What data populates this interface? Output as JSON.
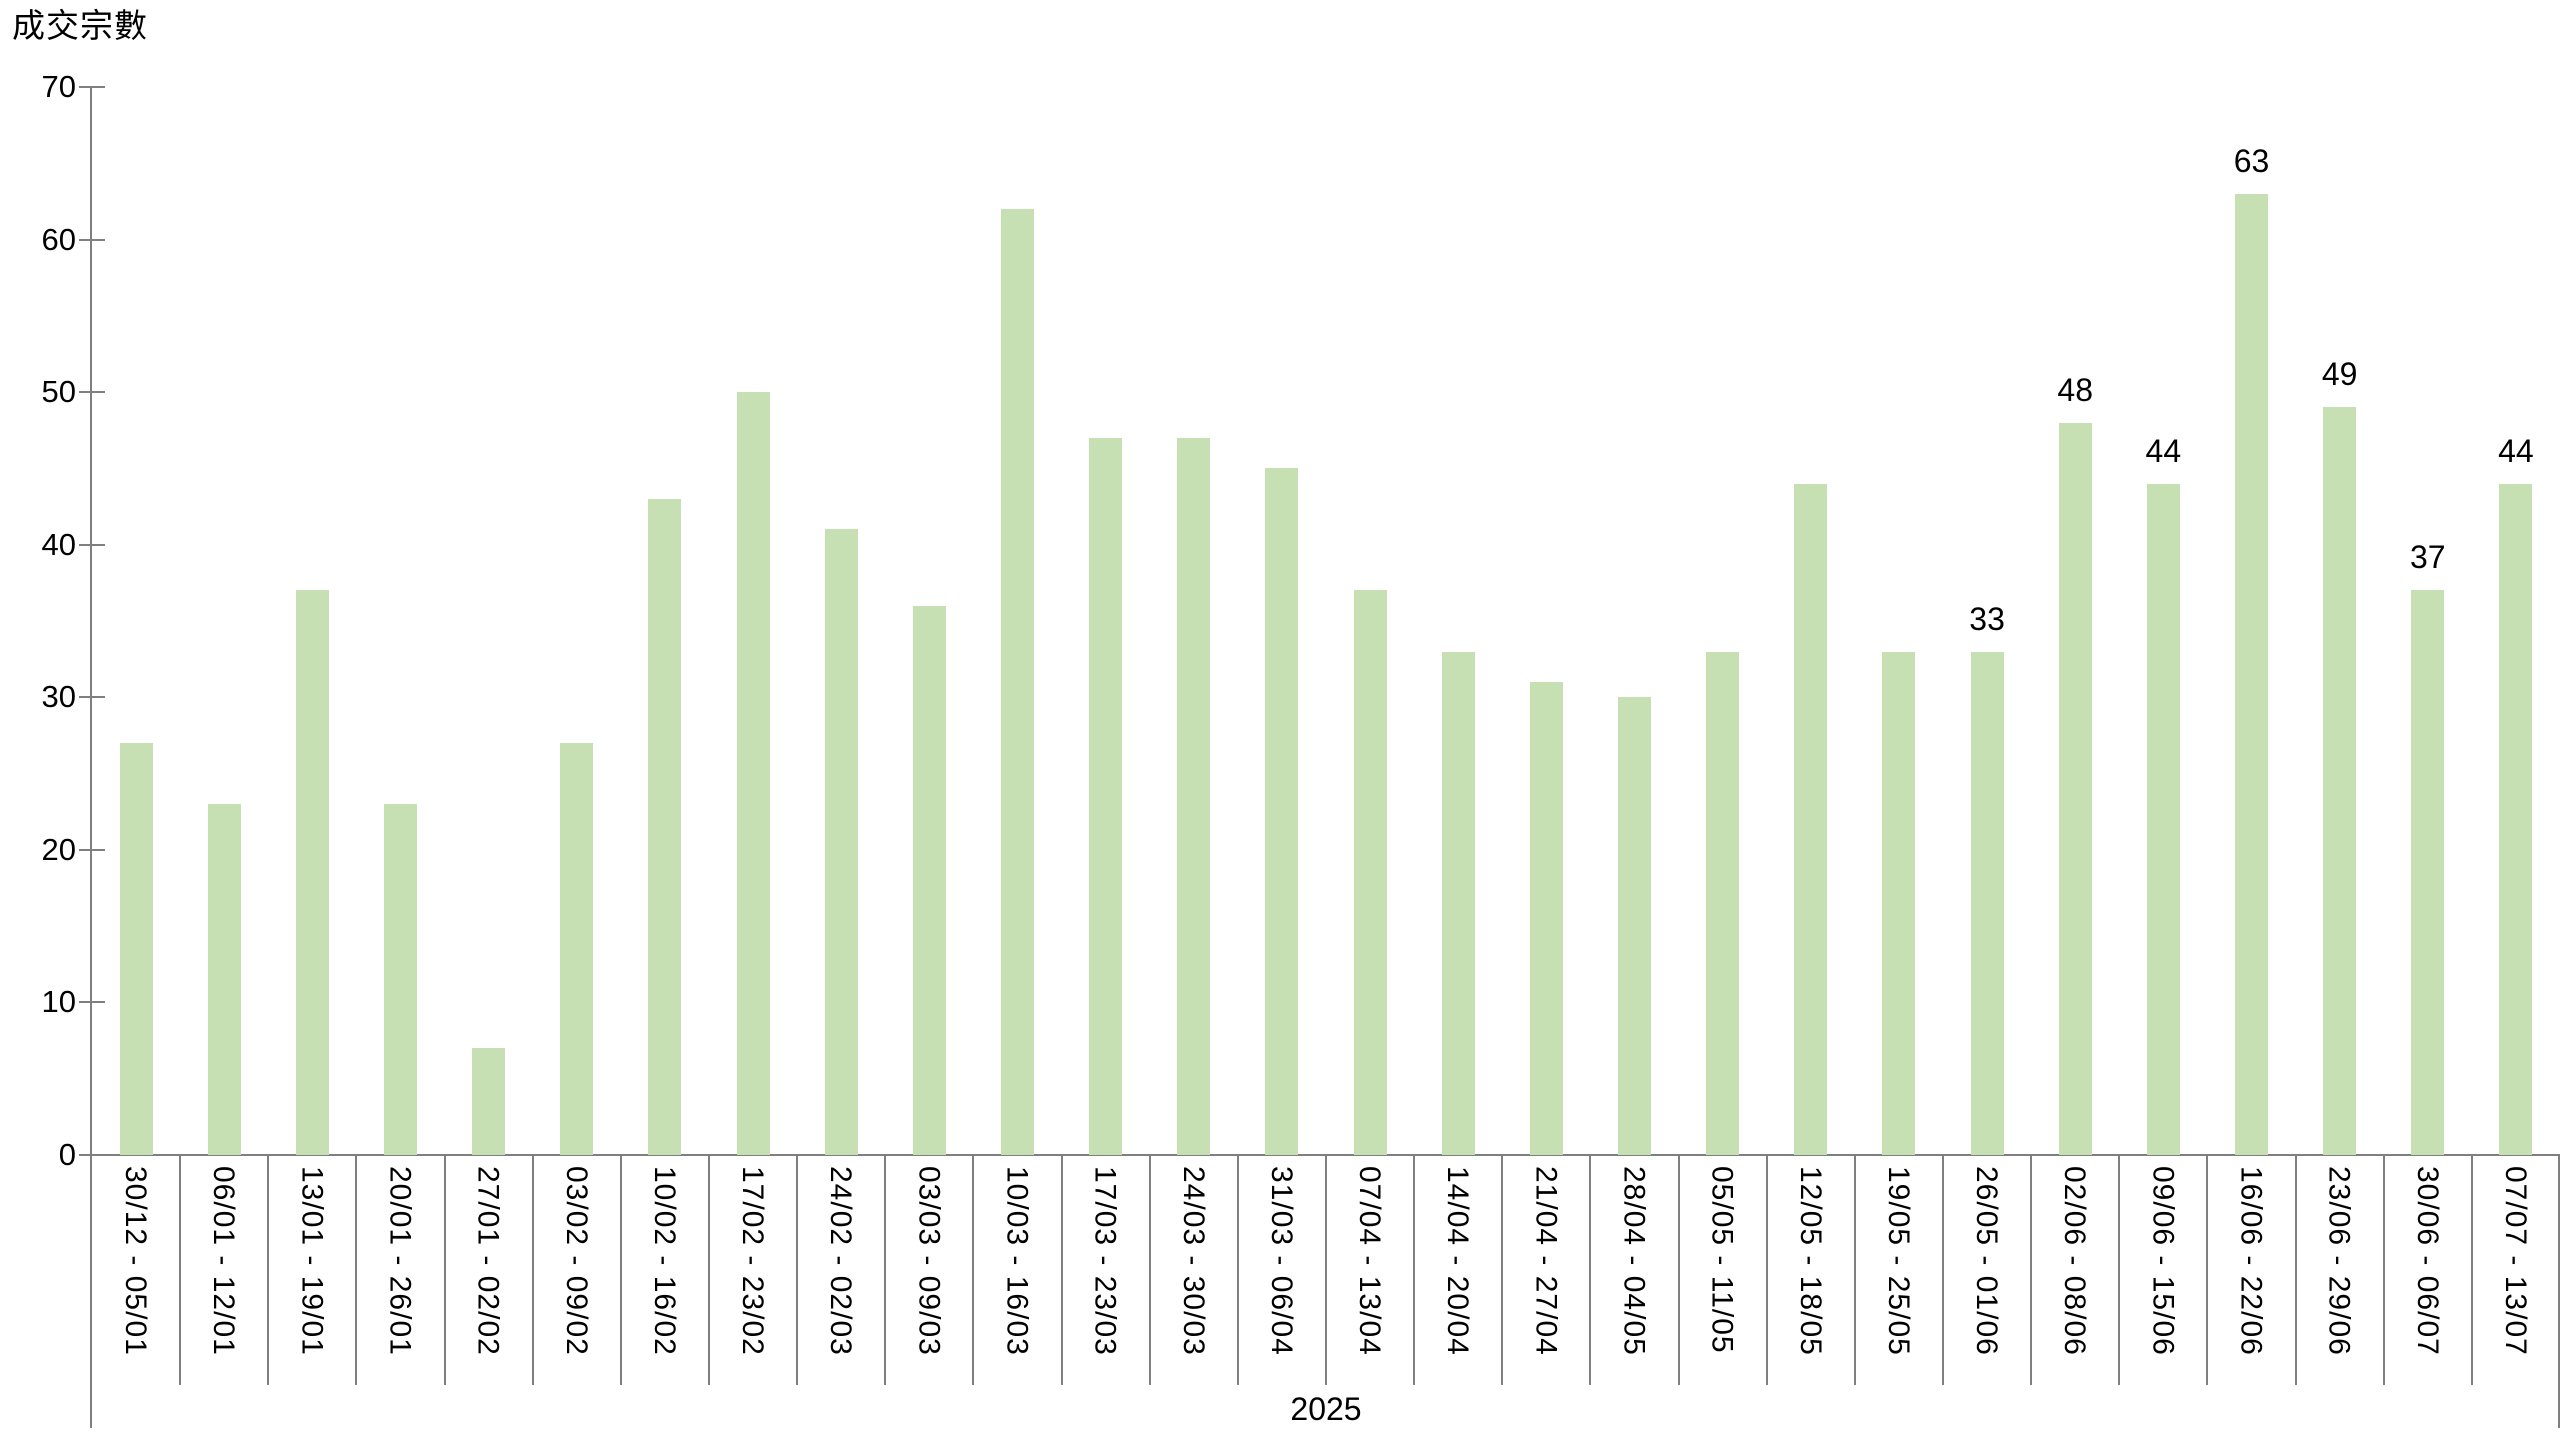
{
  "chart_data": {
    "type": "bar",
    "title": "成交宗數",
    "ylabel": "成交宗數",
    "xlabel": "2025",
    "year_label": "2025",
    "categories": [
      "30/12 - 05/01",
      "06/01 - 12/01",
      "13/01 - 19/01",
      "20/01 - 26/01",
      "27/01 - 02/02",
      "03/02 - 09/02",
      "10/02 - 16/02",
      "17/02 - 23/02",
      "24/02 - 02/03",
      "03/03 - 09/03",
      "10/03 - 16/03",
      "17/03 - 23/03",
      "24/03 - 30/03",
      "31/03 - 06/04",
      "07/04 - 13/04",
      "14/04 - 20/04",
      "21/04 - 27/04",
      "28/04 - 04/05",
      "05/05 - 11/05",
      "12/05 - 18/05",
      "19/05 - 25/05",
      "26/05 - 01/06",
      "02/06 - 08/06",
      "09/06 - 15/06",
      "16/06 - 22/06",
      "23/06 - 29/06",
      "30/06 - 06/07",
      "07/07 - 13/07"
    ],
    "values": [
      27,
      23,
      37,
      23,
      7,
      27,
      43,
      50,
      41,
      36,
      62,
      47,
      47,
      45,
      37,
      33,
      31,
      30,
      33,
      44,
      33,
      33,
      48,
      44,
      63,
      49,
      37,
      44
    ],
    "labeled_indices": [
      21,
      22,
      23,
      24,
      25,
      26,
      27
    ],
    "bar_labels_shown": [
      "33",
      "48",
      "44",
      "63",
      "49",
      "37",
      "44"
    ],
    "y_ticks": [
      0,
      10,
      20,
      30,
      40,
      50,
      60,
      70
    ],
    "ylim": [
      0,
      70
    ],
    "grid": false,
    "legend": "none",
    "colors": {
      "bar": "#c6e0b4",
      "axis": "#7f7f7f",
      "text": "#000000",
      "background": "#ffffff"
    }
  }
}
